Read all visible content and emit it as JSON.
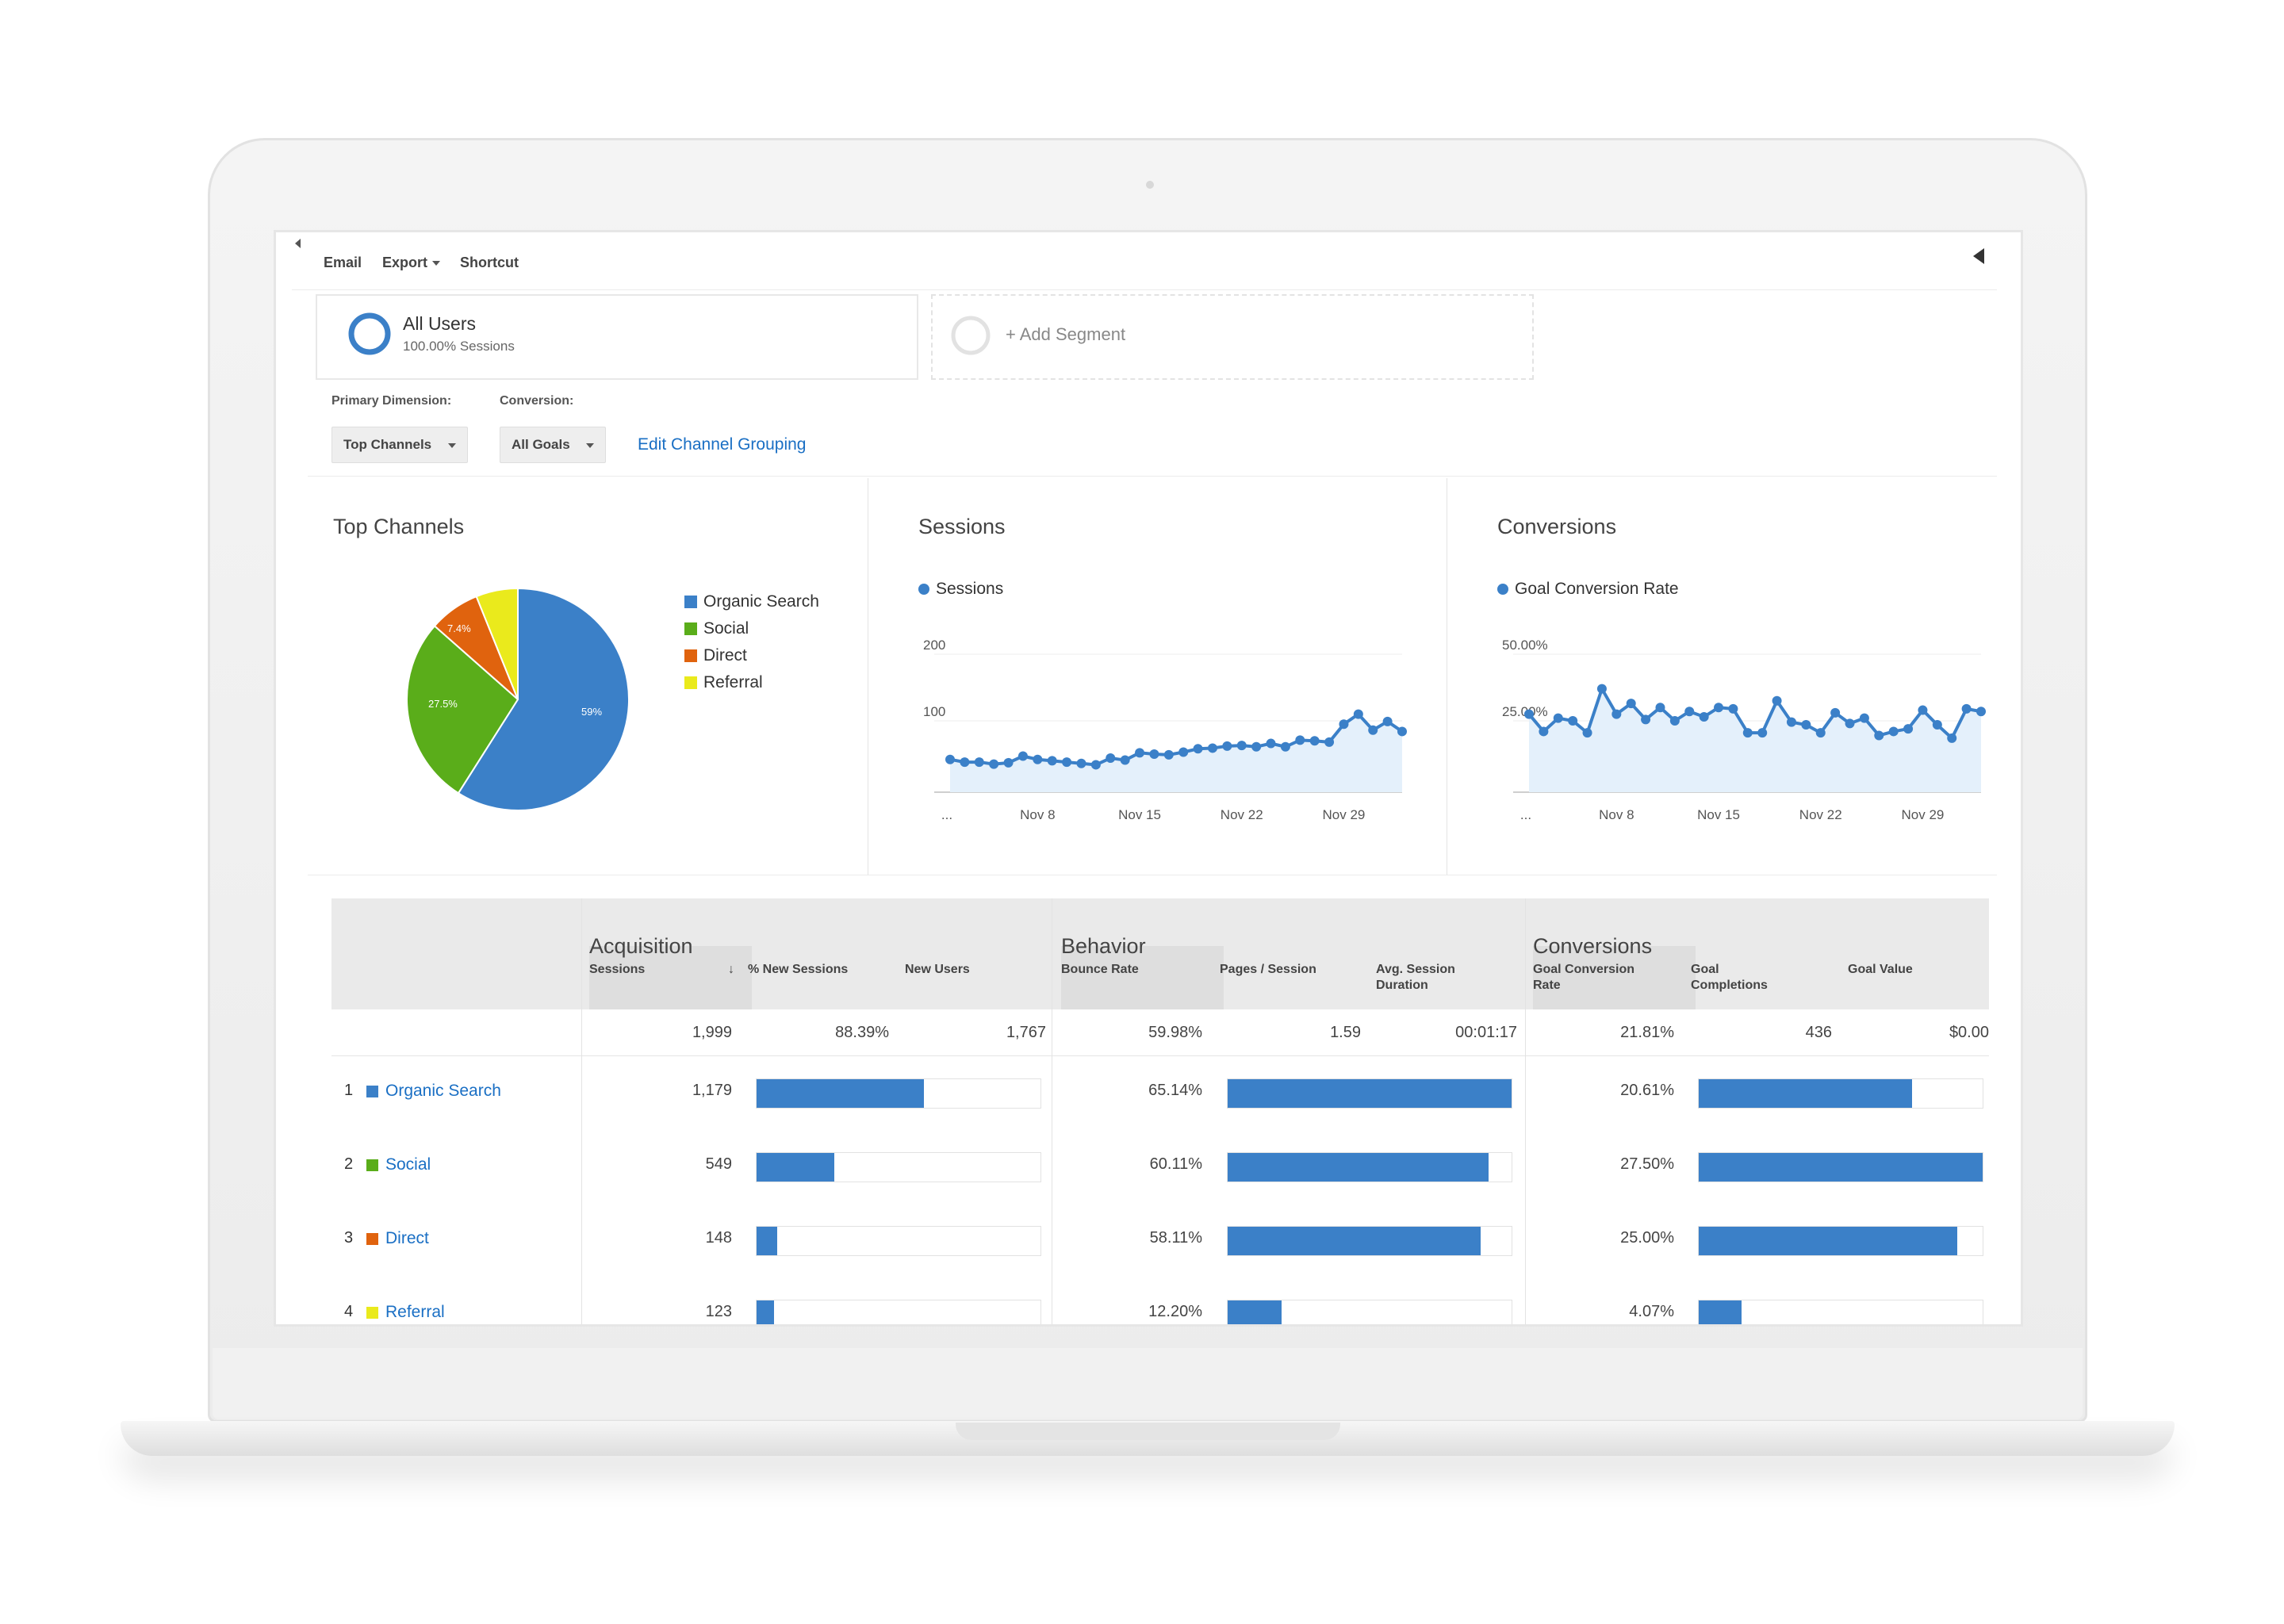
{
  "toolbar": {
    "email": "Email",
    "export": "Export",
    "shortcut": "Shortcut"
  },
  "segments": {
    "all_users_title": "All Users",
    "all_users_sub": "100.00% Sessions",
    "add_segment": "+ Add Segment"
  },
  "filters": {
    "primary_dimension_label": "Primary Dimension:",
    "primary_dimension_value": "Top Channels",
    "conversion_label": "Conversion:",
    "conversion_value": "All Goals",
    "edit_grouping": "Edit Channel Grouping"
  },
  "colors": {
    "organic": "#3b80c8",
    "social": "#5aad1a",
    "direct": "#e0630e",
    "referral": "#eaea1c"
  },
  "panels": {
    "top_channels_title": "Top Channels",
    "sessions_title": "Sessions",
    "conversions_title": "Conversions"
  },
  "chart_data": [
    {
      "type": "pie",
      "title": "Top Channels",
      "categories": [
        "Organic Search",
        "Social",
        "Direct",
        "Referral"
      ],
      "values": [
        59,
        27.5,
        7.4,
        6.1
      ],
      "slice_labels": [
        "59%",
        "27.5%",
        "7.4%",
        ""
      ],
      "legend": "right"
    },
    {
      "type": "area",
      "title": "Sessions",
      "series": [
        {
          "name": "Sessions",
          "values": [
            42,
            38,
            38,
            35,
            37,
            47,
            42,
            40,
            38,
            36,
            34,
            44,
            41,
            52,
            50,
            49,
            53,
            58,
            59,
            62,
            63,
            61,
            66,
            61,
            71,
            70,
            68,
            95,
            110,
            86,
            99,
            84
          ]
        }
      ],
      "ylim": [
        0,
        250
      ],
      "yticks": [
        100,
        200
      ],
      "xticks": [
        "...",
        "Nov 8",
        "Nov 15",
        "Nov 22",
        "Nov 29"
      ]
    },
    {
      "type": "area",
      "title": "Conversions",
      "series": [
        {
          "name": "Goal Conversion Rate",
          "values": [
            27.5,
            21,
            26,
            25,
            20.5,
            37,
            27.5,
            31.5,
            25.5,
            30,
            25,
            28.5,
            26.5,
            30,
            29.5,
            20.5,
            20.5,
            32.5,
            24.5,
            23.5,
            20.5,
            28,
            24,
            26,
            19.5,
            21,
            22,
            29,
            23.5,
            18.5,
            29.5,
            28.5
          ]
        }
      ],
      "ylim": [
        0,
        62.5
      ],
      "yticks_labels": [
        "25.00%",
        "50.00%"
      ],
      "yticks": [
        25,
        50
      ],
      "xticks": [
        "...",
        "Nov 8",
        "Nov 15",
        "Nov 22",
        "Nov 29"
      ]
    }
  ],
  "table": {
    "groups": {
      "acquisition": "Acquisition",
      "behavior": "Behavior",
      "conversions": "Conversions"
    },
    "headers": {
      "sessions": "Sessions",
      "pct_new": "% New Sessions",
      "new_users": "New Users",
      "bounce": "Bounce Rate",
      "pages": "Pages / Session",
      "avg1": "Avg. Session",
      "avg2": "Duration",
      "gcr1": "Goal Conversion",
      "gcr2": "Rate",
      "gc1": "Goal",
      "gc2": "Completions",
      "gv": "Goal Value"
    },
    "totals": {
      "sessions": "1,999",
      "pct_new": "88.39%",
      "new_users": "1,767",
      "bounce": "59.98%",
      "pages": "1.59",
      "avg": "00:01:17",
      "gcr": "21.81%",
      "gc": "436",
      "gv": "$0.00"
    },
    "rows": [
      {
        "num": "1",
        "name": "Organic Search",
        "sessions": "1,179",
        "sessions_frac": 0.59,
        "bounce": "65.14%",
        "bounce_frac": 1.0,
        "gcr": "20.61%",
        "gcr_frac": 0.75
      },
      {
        "num": "2",
        "name": "Social",
        "sessions": "549",
        "sessions_frac": 0.275,
        "bounce": "60.11%",
        "bounce_frac": 0.92,
        "gcr": "27.50%",
        "gcr_frac": 1.0
      },
      {
        "num": "3",
        "name": "Direct",
        "sessions": "148",
        "sessions_frac": 0.074,
        "bounce": "58.11%",
        "bounce_frac": 0.89,
        "gcr": "25.00%",
        "gcr_frac": 0.91
      },
      {
        "num": "4",
        "name": "Referral",
        "sessions": "123",
        "sessions_frac": 0.062,
        "bounce": "12.20%",
        "bounce_frac": 0.19,
        "gcr": "4.07%",
        "gcr_frac": 0.15
      }
    ]
  }
}
